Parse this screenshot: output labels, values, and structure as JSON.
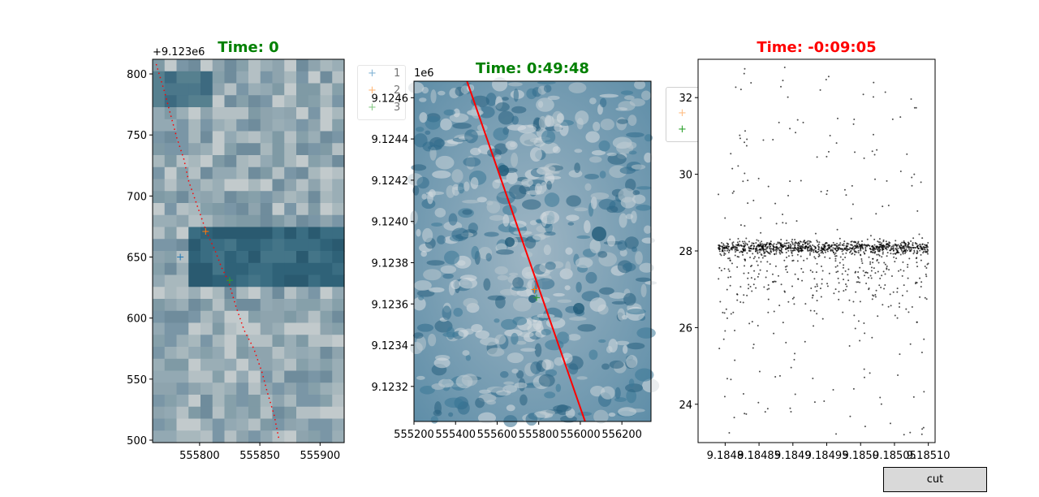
{
  "button": {
    "label": "cut"
  },
  "colors": {
    "title_ok": "#008000",
    "title_warn": "#ff0000",
    "track": "#ff0000",
    "p1": "#1f77b4",
    "p2": "#ff7f0e",
    "p3": "#2ca02c"
  },
  "chart_data": [
    {
      "type": "scatter",
      "title": "Time: 0",
      "title_color": "#008000",
      "background": "satellite image (pixelated, low resolution)",
      "y_offset_label": "+9.123e6",
      "xlim": [
        555761,
        555920
      ],
      "ylim": [
        498,
        812
      ],
      "x_ticks": [
        555800,
        555850,
        555900
      ],
      "x_tick_labels": [
        "555800",
        "555850",
        "555900"
      ],
      "y_ticks": [
        500,
        550,
        600,
        650,
        700,
        750,
        800
      ],
      "y_tick_labels": [
        "500",
        "550",
        "600",
        "650",
        "700",
        "750",
        "800"
      ],
      "track": {
        "x": [
          555764,
          555771,
          555775,
          555781,
          555787,
          555791,
          555797,
          555803,
          555806,
          555813,
          555818,
          555824,
          555830,
          555837,
          555845,
          555852,
          555856,
          555862,
          555866
        ],
        "y": [
          808,
          785,
          770,
          748,
          730,
          712,
          695,
          678,
          670,
          655,
          642,
          630,
          610,
          590,
          575,
          555,
          540,
          520,
          500
        ]
      },
      "legend": {
        "placement": "outside upper right",
        "entries": [
          {
            "label": "1",
            "marker": "+",
            "color": "#1f77b4"
          },
          {
            "label": "2",
            "marker": "+",
            "color": "#ff7f0e"
          },
          {
            "label": "3",
            "marker": "+",
            "color": "#2ca02c"
          }
        ]
      },
      "points": [
        {
          "series": "1",
          "x": 555784,
          "y": 650
        },
        {
          "series": "2",
          "x": 555805,
          "y": 671
        },
        {
          "series": "3",
          "x": 555825,
          "y": 631
        }
      ]
    },
    {
      "type": "line",
      "title": "Time: 0:49:48",
      "title_color": "#008000",
      "background": "satellite image (sea ice, blue and white)",
      "y_offset_label": "1e6",
      "xlim": [
        555200,
        556340
      ],
      "ylim": [
        9.12303,
        9.12468
      ],
      "x_ticks": [
        555200,
        555400,
        555600,
        555800,
        556000,
        556200
      ],
      "x_tick_labels": [
        "555200",
        "555400",
        "555600",
        "555800",
        "556000",
        "556200"
      ],
      "y_ticks": [
        9.1232,
        9.1234,
        9.1236,
        9.1238,
        9.124,
        9.1242,
        9.1244,
        9.1246
      ],
      "y_tick_labels": [
        "9.1232",
        "9.1234",
        "9.1236",
        "9.1238",
        "9.1240",
        "9.1242",
        "9.1244",
        "9.1246"
      ],
      "track": {
        "x": [
          555455,
          556023
        ],
        "y": [
          9.12468,
          9.12303
        ]
      },
      "points": [
        {
          "series": "2",
          "x": 555780,
          "y": 9.12367
        },
        {
          "series": "3",
          "x": 555790,
          "y": 9.12363
        }
      ]
    },
    {
      "type": "scatter",
      "title": "Time: -0:09:05",
      "title_color": "#ff0000",
      "xlim": [
        9.18476,
        9.18511
      ],
      "ylim": [
        23.0,
        33.0
      ],
      "x_ticks": [
        9.1848,
        9.18485,
        9.1849,
        9.18495,
        9.185,
        9.18505,
        9.1851
      ],
      "x_tick_labels": [
        "9.1848",
        "9.18485",
        "9.1849",
        "9.18495",
        "9.1850",
        "9.18505",
        "9.18510"
      ],
      "y_ticks": [
        24,
        26,
        28,
        30,
        32
      ],
      "y_tick_labels": [
        "24",
        "26",
        "28",
        "30",
        "32"
      ],
      "band_center": 28.1,
      "point_color": "#000000",
      "legend_markers": [
        {
          "marker": "+",
          "color": "#ff7f0e"
        },
        {
          "marker": "+",
          "color": "#2ca02c"
        }
      ]
    }
  ]
}
